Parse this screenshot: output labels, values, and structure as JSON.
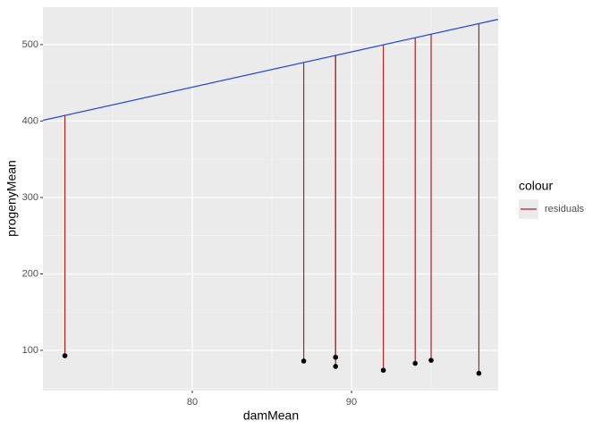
{
  "chart_data": {
    "type": "scatter",
    "x_label": "damMean",
    "y_label": "progenyMean",
    "x": [
      72,
      87,
      89,
      89,
      92,
      94,
      95,
      98
    ],
    "series": [
      {
        "name": "residuals",
        "color": "#b2221c",
        "values": [
          93,
          86,
          91,
          79,
          74,
          83,
          87,
          70
        ],
        "fitted": [
          407.3,
          476.6,
          485.9,
          485.9,
          499.7,
          509,
          513.6,
          527.5
        ]
      }
    ],
    "point_color": "#000000",
    "fit": {
      "intercept": 74.7,
      "slope": 4.62,
      "color": "#1f45e6"
    },
    "legend_title": "colour",
    "legend_position": "right",
    "xlim": [
      70.62,
      99.21
    ],
    "xticks": [
      80,
      90
    ],
    "xminor": [
      75,
      85,
      95
    ],
    "ylim": [
      47.4,
      549
    ],
    "yticks": [
      100,
      200,
      300,
      400,
      500
    ],
    "yminor": [
      50,
      150,
      250,
      350,
      450
    ],
    "grid": true
  }
}
